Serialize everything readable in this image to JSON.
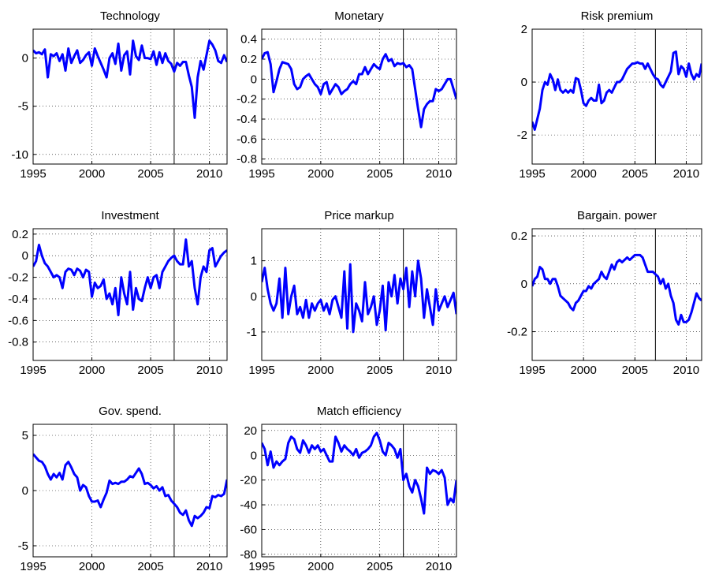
{
  "chart_data": [
    {
      "type": "line",
      "title": "Technology",
      "color": "#0000ff",
      "grid": true,
      "vline": 2007,
      "xlim": [
        1995,
        2011.5
      ],
      "xticks": [
        1995,
        2000,
        2005,
        2010
      ],
      "ylim": [
        -11,
        3
      ],
      "yticks": [
        -10,
        -5,
        0
      ],
      "x": [
        1995,
        1995.25,
        1995.5,
        1995.75,
        1996,
        1996.25,
        1996.5,
        1996.75,
        1997,
        1997.25,
        1997.5,
        1997.75,
        1998,
        1998.25,
        1998.5,
        1998.75,
        1999,
        1999.25,
        1999.5,
        1999.75,
        2000,
        2000.25,
        2000.5,
        2000.75,
        2001,
        2001.25,
        2001.5,
        2001.75,
        2002,
        2002.25,
        2002.5,
        2002.75,
        2003,
        2003.25,
        2003.5,
        2003.75,
        2004,
        2004.25,
        2004.5,
        2004.75,
        2005,
        2005.25,
        2005.5,
        2005.75,
        2006,
        2006.25,
        2006.5,
        2006.75,
        2007,
        2007.25,
        2007.5,
        2007.75,
        2008,
        2008.25,
        2008.5,
        2008.75,
        2009,
        2009.25,
        2009.5,
        2009.75,
        2010,
        2010.25,
        2010.5,
        2010.75,
        2011,
        2011.25,
        2011.5
      ],
      "values": [
        0.8,
        0.5,
        0.6,
        0.4,
        0.9,
        -2,
        0.4,
        0.2,
        0.5,
        -0.3,
        0.4,
        -1.3,
        1,
        -0.5,
        0.2,
        0.8,
        -0.5,
        -0.2,
        0.3,
        0.6,
        -0.8,
        1,
        0.2,
        -0.5,
        -1.2,
        -2,
        0,
        0.5,
        -0.6,
        1.5,
        -1.3,
        0.3,
        0.7,
        -1.7,
        1.8,
        0.2,
        -0.2,
        1.3,
        0,
        0,
        -0.1,
        0.7,
        -0.7,
        0.6,
        -0.5,
        0.5,
        -0.3,
        -0.6,
        -1.4,
        -0.5,
        -0.8,
        -0.4,
        -0.4,
        -1.8,
        -3,
        -6.2,
        -2,
        -0.3,
        -1.2,
        0.3,
        1.8,
        1.4,
        0.8,
        -0.3,
        -0.5,
        0.3,
        -0.4
      ]
    },
    {
      "type": "line",
      "title": "Monetary",
      "color": "#0000ff",
      "grid": true,
      "vline": 2007,
      "xlim": [
        1995,
        2011.5
      ],
      "xticks": [
        1995,
        2000,
        2005,
        2010
      ],
      "ylim": [
        -0.85,
        0.5
      ],
      "yticks": [
        -0.8,
        -0.6,
        -0.4,
        -0.2,
        0,
        0.2,
        0.4
      ],
      "x": [
        1995,
        1995.25,
        1995.5,
        1995.75,
        1996,
        1996.25,
        1996.5,
        1996.75,
        1997,
        1997.25,
        1997.5,
        1997.75,
        1998,
        1998.25,
        1998.5,
        1998.75,
        1999,
        1999.25,
        1999.5,
        1999.75,
        2000,
        2000.25,
        2000.5,
        2000.75,
        2001,
        2001.25,
        2001.5,
        2001.75,
        2002,
        2002.25,
        2002.5,
        2002.75,
        2003,
        2003.25,
        2003.5,
        2003.75,
        2004,
        2004.25,
        2004.5,
        2004.75,
        2005,
        2005.25,
        2005.5,
        2005.75,
        2006,
        2006.25,
        2006.5,
        2006.75,
        2007,
        2007.25,
        2007.5,
        2007.75,
        2008,
        2008.25,
        2008.5,
        2008.75,
        2009,
        2009.25,
        2009.5,
        2009.75,
        2010,
        2010.25,
        2010.5,
        2010.75,
        2011,
        2011.25,
        2011.5
      ],
      "values": [
        0.2,
        0.26,
        0.27,
        0.15,
        -0.13,
        -0.02,
        0.1,
        0.17,
        0.16,
        0.15,
        0.1,
        -0.05,
        -0.1,
        -0.08,
        0.0,
        0.03,
        0.05,
        0.0,
        -0.05,
        -0.08,
        -0.15,
        -0.05,
        -0.03,
        -0.15,
        -0.1,
        -0.05,
        -0.08,
        -0.15,
        -0.12,
        -0.1,
        -0.05,
        -0.02,
        -0.05,
        0.05,
        0.05,
        0.12,
        0.05,
        0.1,
        0.15,
        0.12,
        0.1,
        0.2,
        0.25,
        0.18,
        0.2,
        0.13,
        0.16,
        0.15,
        0.16,
        0.12,
        0.14,
        0.1,
        -0.1,
        -0.3,
        -0.48,
        -0.3,
        -0.25,
        -0.22,
        -0.22,
        -0.1,
        -0.12,
        -0.1,
        -0.05,
        0.0,
        0.0,
        -0.1,
        -0.2
      ]
    },
    {
      "type": "line",
      "title": "Risk premium",
      "color": "#0000ff",
      "grid": true,
      "vline": 2007,
      "xlim": [
        1995,
        2011.5
      ],
      "xticks": [
        1995,
        2000,
        2005,
        2010
      ],
      "ylim": [
        -3.1,
        2
      ],
      "yticks": [
        -2,
        0,
        2
      ],
      "x": [
        1995,
        1995.25,
        1995.5,
        1995.75,
        1996,
        1996.25,
        1996.5,
        1996.75,
        1997,
        1997.25,
        1997.5,
        1997.75,
        1998,
        1998.25,
        1998.5,
        1998.75,
        1999,
        1999.25,
        1999.5,
        1999.75,
        2000,
        2000.25,
        2000.5,
        2000.75,
        2001,
        2001.25,
        2001.5,
        2001.75,
        2002,
        2002.25,
        2002.5,
        2002.75,
        2003,
        2003.25,
        2003.5,
        2003.75,
        2004,
        2004.25,
        2004.5,
        2004.75,
        2005,
        2005.25,
        2005.5,
        2005.75,
        2006,
        2006.25,
        2006.5,
        2006.75,
        2007,
        2007.25,
        2007.5,
        2007.75,
        2008,
        2008.25,
        2008.5,
        2008.75,
        2009,
        2009.25,
        2009.5,
        2009.75,
        2010,
        2010.25,
        2010.5,
        2010.75,
        2011,
        2011.25,
        2011.5
      ],
      "values": [
        -1.5,
        -1.8,
        -1.4,
        -1.0,
        -0.3,
        0.0,
        -0.1,
        0.3,
        0.1,
        -0.3,
        0.1,
        -0.3,
        -0.4,
        -0.3,
        -0.4,
        -0.3,
        -0.4,
        0.15,
        0.1,
        -0.3,
        -0.8,
        -0.9,
        -0.7,
        -0.6,
        -0.7,
        -0.7,
        -0.1,
        -0.8,
        -0.7,
        -0.4,
        -0.3,
        -0.4,
        -0.2,
        0,
        0,
        0.1,
        0.3,
        0.5,
        0.6,
        0.7,
        0.7,
        0.75,
        0.7,
        0.7,
        0.5,
        0.7,
        0.5,
        0.3,
        0.15,
        0.1,
        -0.1,
        -0.2,
        0.0,
        0.2,
        0.4,
        1.1,
        1.15,
        0.3,
        0.6,
        0.5,
        0.2,
        0.7,
        0.3,
        0.1,
        0.3,
        0.2,
        0.7
      ]
    },
    {
      "type": "line",
      "title": "Investment",
      "color": "#0000ff",
      "grid": true,
      "vline": 2007,
      "xlim": [
        1995,
        2011.5
      ],
      "xticks": [
        1995,
        2000,
        2005,
        2010
      ],
      "ylim": [
        -0.97,
        0.25
      ],
      "yticks": [
        -0.8,
        -0.6,
        -0.4,
        -0.2,
        0,
        0.2
      ],
      "x": [
        1995,
        1995.25,
        1995.5,
        1995.75,
        1996,
        1996.25,
        1996.5,
        1996.75,
        1997,
        1997.25,
        1997.5,
        1997.75,
        1998,
        1998.25,
        1998.5,
        1998.75,
        1999,
        1999.25,
        1999.5,
        1999.75,
        2000,
        2000.25,
        2000.5,
        2000.75,
        2001,
        2001.25,
        2001.5,
        2001.75,
        2002,
        2002.25,
        2002.5,
        2002.75,
        2003,
        2003.25,
        2003.5,
        2003.75,
        2004,
        2004.25,
        2004.5,
        2004.75,
        2005,
        2005.25,
        2005.5,
        2005.75,
        2006,
        2006.25,
        2006.5,
        2006.75,
        2007,
        2007.25,
        2007.5,
        2007.75,
        2008,
        2008.25,
        2008.5,
        2008.75,
        2009,
        2009.25,
        2009.5,
        2009.75,
        2010,
        2010.25,
        2010.5,
        2010.75,
        2011,
        2011.25,
        2011.5
      ],
      "values": [
        -0.1,
        -0.05,
        0.1,
        0.0,
        -0.07,
        -0.1,
        -0.15,
        -0.2,
        -0.18,
        -0.2,
        -0.3,
        -0.15,
        -0.12,
        -0.13,
        -0.18,
        -0.12,
        -0.14,
        -0.2,
        -0.13,
        -0.15,
        -0.38,
        -0.25,
        -0.3,
        -0.28,
        -0.22,
        -0.4,
        -0.35,
        -0.45,
        -0.3,
        -0.55,
        -0.2,
        -0.35,
        -0.45,
        -0.15,
        -0.5,
        -0.3,
        -0.4,
        -0.42,
        -0.3,
        -0.2,
        -0.3,
        -0.2,
        -0.18,
        -0.3,
        -0.15,
        -0.1,
        -0.05,
        -0.02,
        0.0,
        -0.05,
        -0.08,
        -0.08,
        0.15,
        -0.1,
        -0.05,
        -0.3,
        -0.45,
        -0.2,
        -0.1,
        -0.15,
        0.05,
        0.07,
        -0.1,
        -0.05,
        0.0,
        0.03,
        0.05
      ]
    },
    {
      "type": "line",
      "title": "Price markup",
      "color": "#0000ff",
      "grid": true,
      "vline": 2007,
      "xlim": [
        1995,
        2011.5
      ],
      "xticks": [
        1995,
        2000,
        2005,
        2010
      ],
      "ylim": [
        -1.8,
        1.9
      ],
      "yticks": [
        -1,
        0,
        1
      ],
      "x": [
        1995,
        1995.25,
        1995.5,
        1995.75,
        1996,
        1996.25,
        1996.5,
        1996.75,
        1997,
        1997.25,
        1997.5,
        1997.75,
        1998,
        1998.25,
        1998.5,
        1998.75,
        1999,
        1999.25,
        1999.5,
        1999.75,
        2000,
        2000.25,
        2000.5,
        2000.75,
        2001,
        2001.25,
        2001.5,
        2001.75,
        2002,
        2002.25,
        2002.5,
        2002.75,
        2003,
        2003.25,
        2003.5,
        2003.75,
        2004,
        2004.25,
        2004.5,
        2004.75,
        2005,
        2005.25,
        2005.5,
        2005.75,
        2006,
        2006.25,
        2006.5,
        2006.75,
        2007,
        2007.25,
        2007.5,
        2007.75,
        2008,
        2008.25,
        2008.5,
        2008.75,
        2009,
        2009.25,
        2009.5,
        2009.75,
        2010,
        2010.25,
        2010.5,
        2010.75,
        2011,
        2011.25,
        2011.5
      ],
      "values": [
        0.4,
        0.8,
        0.2,
        -0.2,
        -0.4,
        -0.2,
        0.5,
        -0.6,
        0.8,
        -0.5,
        0.0,
        0.3,
        -0.5,
        -0.3,
        -0.6,
        -0.1,
        -0.6,
        -0.2,
        -0.4,
        -0.2,
        -0.1,
        -0.4,
        -0.2,
        -0.5,
        -0.1,
        0.0,
        -0.3,
        -0.6,
        0.7,
        -0.9,
        0.9,
        -1.0,
        -0.2,
        -0.4,
        -0.7,
        0.4,
        -0.5,
        -0.3,
        0.0,
        -0.8,
        -0.4,
        0.3,
        -0.95,
        0.4,
        0.0,
        0.6,
        -0.2,
        0.5,
        0.2,
        0.8,
        -0.3,
        0.7,
        0.0,
        1.0,
        0.5,
        -0.6,
        0.2,
        -0.3,
        -0.8,
        0.2,
        -0.4,
        -0.2,
        0.0,
        -0.3,
        -0.1,
        0.1,
        -0.5
      ]
    },
    {
      "type": "line",
      "title": "Bargain. power",
      "color": "#0000ff",
      "grid": true,
      "vline": 2007,
      "xlim": [
        1995,
        2011.5
      ],
      "xticks": [
        1995,
        2000,
        2005,
        2010
      ],
      "ylim": [
        -0.32,
        0.23
      ],
      "yticks": [
        -0.2,
        0,
        0.2
      ],
      "x": [
        1995,
        1995.25,
        1995.5,
        1995.75,
        1996,
        1996.25,
        1996.5,
        1996.75,
        1997,
        1997.25,
        1997.5,
        1997.75,
        1998,
        1998.25,
        1998.5,
        1998.75,
        1999,
        1999.25,
        1999.5,
        1999.75,
        2000,
        2000.25,
        2000.5,
        2000.75,
        2001,
        2001.25,
        2001.5,
        2001.75,
        2002,
        2002.25,
        2002.5,
        2002.75,
        2003,
        2003.25,
        2003.5,
        2003.75,
        2004,
        2004.25,
        2004.5,
        2004.75,
        2005,
        2005.25,
        2005.5,
        2005.75,
        2006,
        2006.25,
        2006.5,
        2006.75,
        2007,
        2007.25,
        2007.5,
        2007.75,
        2008,
        2008.25,
        2008.5,
        2008.75,
        2009,
        2009.25,
        2009.5,
        2009.75,
        2010,
        2010.25,
        2010.5,
        2010.75,
        2011,
        2011.25,
        2011.5
      ],
      "values": [
        -0.01,
        0.02,
        0.03,
        0.07,
        0.06,
        0.02,
        0.02,
        0.0,
        0.02,
        0.02,
        -0.01,
        -0.05,
        -0.06,
        -0.07,
        -0.08,
        -0.1,
        -0.11,
        -0.08,
        -0.07,
        -0.05,
        -0.03,
        -0.03,
        -0.01,
        -0.02,
        0.0,
        0.01,
        0.02,
        0.05,
        0.03,
        0.02,
        0.05,
        0.08,
        0.06,
        0.09,
        0.1,
        0.09,
        0.1,
        0.11,
        0.1,
        0.11,
        0.12,
        0.12,
        0.12,
        0.11,
        0.08,
        0.05,
        0.05,
        0.05,
        0.04,
        0.03,
        0.0,
        0.02,
        -0.02,
        0.0,
        -0.05,
        -0.08,
        -0.15,
        -0.17,
        -0.13,
        -0.16,
        -0.16,
        -0.15,
        -0.12,
        -0.08,
        -0.04,
        -0.06,
        -0.07
      ]
    },
    {
      "type": "line",
      "title": "Gov. spend.",
      "color": "#0000ff",
      "grid": true,
      "vline": 2007,
      "xlim": [
        1995,
        2011.5
      ],
      "xticks": [
        1995,
        2000,
        2005,
        2010
      ],
      "ylim": [
        -6,
        6
      ],
      "yticks": [
        -5,
        0,
        5
      ],
      "x": [
        1995,
        1995.25,
        1995.5,
        1995.75,
        1996,
        1996.25,
        1996.5,
        1996.75,
        1997,
        1997.25,
        1997.5,
        1997.75,
        1998,
        1998.25,
        1998.5,
        1998.75,
        1999,
        1999.25,
        1999.5,
        1999.75,
        2000,
        2000.25,
        2000.5,
        2000.75,
        2001,
        2001.25,
        2001.5,
        2001.75,
        2002,
        2002.25,
        2002.5,
        2002.75,
        2003,
        2003.25,
        2003.5,
        2003.75,
        2004,
        2004.25,
        2004.5,
        2004.75,
        2005,
        2005.25,
        2005.5,
        2005.75,
        2006,
        2006.25,
        2006.5,
        2006.75,
        2007,
        2007.25,
        2007.5,
        2007.75,
        2008,
        2008.25,
        2008.5,
        2008.75,
        2009,
        2009.25,
        2009.5,
        2009.75,
        2010,
        2010.25,
        2010.5,
        2010.75,
        2011,
        2011.25,
        2011.5
      ],
      "values": [
        3.3,
        3.0,
        2.7,
        2.6,
        2.2,
        1.5,
        1.0,
        1.5,
        1.2,
        1.6,
        1.0,
        2.3,
        2.6,
        2.1,
        1.5,
        1.2,
        0.0,
        0.5,
        0.3,
        -0.5,
        -1.0,
        -1.0,
        -0.9,
        -1.5,
        -0.8,
        -0.2,
        0.9,
        0.6,
        0.7,
        0.6,
        0.8,
        0.8,
        1.0,
        1.3,
        1.2,
        1.6,
        2.0,
        1.5,
        0.6,
        0.7,
        0.5,
        0.2,
        0.4,
        0.0,
        0.3,
        -0.5,
        -0.4,
        -0.9,
        -1.2,
        -1.5,
        -2.0,
        -2.2,
        -1.8,
        -2.7,
        -3.2,
        -2.3,
        -2.5,
        -2.3,
        -2.0,
        -1.5,
        -1.6,
        -0.5,
        -0.6,
        -0.4,
        -0.5,
        -0.3,
        1.0
      ]
    },
    {
      "type": "line",
      "title": "Match efficiency",
      "color": "#0000ff",
      "grid": true,
      "vline": 2007,
      "xlim": [
        1995,
        2011.5
      ],
      "xticks": [
        1995,
        2000,
        2005,
        2010
      ],
      "ylim": [
        -82,
        25
      ],
      "yticks": [
        -80,
        -60,
        -40,
        -20,
        0,
        20
      ],
      "x": [
        1995,
        1995.25,
        1995.5,
        1995.75,
        1996,
        1996.25,
        1996.5,
        1996.75,
        1997,
        1997.25,
        1997.5,
        1997.75,
        1998,
        1998.25,
        1998.5,
        1998.75,
        1999,
        1999.25,
        1999.5,
        1999.75,
        2000,
        2000.25,
        2000.5,
        2000.75,
        2001,
        2001.25,
        2001.5,
        2001.75,
        2002,
        2002.25,
        2002.5,
        2002.75,
        2003,
        2003.25,
        2003.5,
        2003.75,
        2004,
        2004.25,
        2004.5,
        2004.75,
        2005,
        2005.25,
        2005.5,
        2005.75,
        2006,
        2006.25,
        2006.5,
        2006.75,
        2007,
        2007.25,
        2007.5,
        2007.75,
        2008,
        2008.25,
        2008.5,
        2008.75,
        2009,
        2009.25,
        2009.5,
        2009.75,
        2010,
        2010.25,
        2010.5,
        2010.75,
        2011,
        2011.25,
        2011.5
      ],
      "values": [
        10,
        5,
        -8,
        3,
        -10,
        -5,
        -8,
        -5,
        -3,
        10,
        15,
        13,
        5,
        2,
        12,
        8,
        2,
        8,
        5,
        8,
        3,
        5,
        0,
        -5,
        -5,
        15,
        10,
        3,
        8,
        5,
        3,
        0,
        5,
        -2,
        2,
        3,
        5,
        8,
        15,
        18,
        12,
        3,
        0,
        10,
        8,
        5,
        -2,
        5,
        -20,
        -15,
        -25,
        -30,
        -20,
        -25,
        -35,
        -47,
        -10,
        -15,
        -12,
        -13,
        -15,
        -12,
        -18,
        -40,
        -35,
        -38,
        -20
      ]
    }
  ]
}
